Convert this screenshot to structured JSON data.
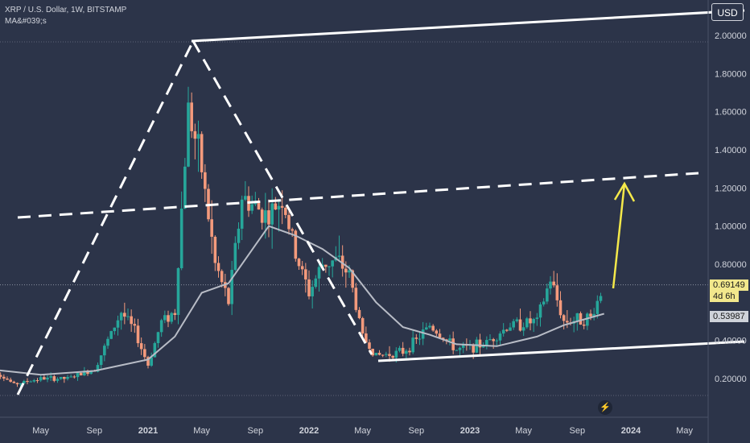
{
  "header": {
    "symbol_line": "XRP / U.S. Dollar, 1W, BITSTAMP",
    "indicator_line": "MA&#039;s",
    "currency_button": "USD"
  },
  "price_tags": {
    "last_price": "0.69149",
    "countdown": "4d 6h",
    "ma_value": "0.53987"
  },
  "theme": {
    "background": "#2c3449",
    "up_candle": "#26a69a",
    "down_candle": "#f49a7c",
    "ma_line": "#b8bcc6",
    "drawings": "#ffffff",
    "arrow": "#f5e94a"
  },
  "icons": {
    "bottom": "lightning-icon"
  },
  "chart_data": {
    "type": "candlestick",
    "title": "XRP / U.S. Dollar, 1W, BITSTAMP",
    "ylabel": "USD",
    "y_ticks": [
      "2.00000",
      "1.80000",
      "1.60000",
      "1.40000",
      "1.20000",
      "1.00000",
      "0.80000",
      "0.40000",
      "0.20000"
    ],
    "y_tick_values": [
      2.0,
      1.8,
      1.6,
      1.4,
      1.2,
      1.0,
      0.8,
      0.4,
      0.2
    ],
    "x_ticks": [
      "May",
      "Sep",
      "2021",
      "May",
      "Sep",
      "2022",
      "May",
      "Sep",
      "2023",
      "May",
      "Sep",
      "2024",
      "May"
    ],
    "x_tick_dates": [
      "2020-05",
      "2020-09",
      "2021-01",
      "2021-05",
      "2021-09",
      "2022-01",
      "2022-05",
      "2022-09",
      "2023-01",
      "2023-05",
      "2023-09",
      "2024-01",
      "2024-05"
    ],
    "last_price": 0.69149,
    "ma_last": 0.53987,
    "price_path": [
      [
        "2020-01",
        0.27
      ],
      [
        "2020-03",
        0.17
      ],
      [
        "2020-05",
        0.2
      ],
      [
        "2020-07",
        0.2
      ],
      [
        "2020-09",
        0.25
      ],
      [
        "2020-11",
        0.55
      ],
      [
        "2020-12",
        0.45
      ],
      [
        "2021-01",
        0.27
      ],
      [
        "2021-02",
        0.5
      ],
      [
        "2021-03",
        0.55
      ],
      [
        "2021-04",
        1.62
      ],
      [
        "2021-05",
        1.3
      ],
      [
        "2021-06",
        0.8
      ],
      [
        "2021-07",
        0.6
      ],
      [
        "2021-08",
        1.15
      ],
      [
        "2021-09",
        1.1
      ],
      [
        "2021-10",
        1.05
      ],
      [
        "2021-11",
        1.15
      ],
      [
        "2021-12",
        0.85
      ],
      [
        "2022-01",
        0.65
      ],
      [
        "2022-02",
        0.8
      ],
      [
        "2022-03",
        0.82
      ],
      [
        "2022-04",
        0.75
      ],
      [
        "2022-05",
        0.42
      ],
      [
        "2022-06",
        0.32
      ],
      [
        "2022-08",
        0.34
      ],
      [
        "2022-09",
        0.4
      ],
      [
        "2022-10",
        0.48
      ],
      [
        "2022-12",
        0.35
      ],
      [
        "2023-02",
        0.38
      ],
      [
        "2023-04",
        0.48
      ],
      [
        "2023-06",
        0.5
      ],
      [
        "2023-07",
        0.72
      ],
      [
        "2023-08",
        0.5
      ],
      [
        "2023-10",
        0.52
      ],
      [
        "2023-11",
        0.69
      ]
    ],
    "ma_path": [
      [
        "2020-01",
        0.25
      ],
      [
        "2020-05",
        0.22
      ],
      [
        "2020-09",
        0.24
      ],
      [
        "2021-01",
        0.3
      ],
      [
        "2021-03",
        0.42
      ],
      [
        "2021-05",
        0.65
      ],
      [
        "2021-07",
        0.7
      ],
      [
        "2021-09",
        0.9
      ],
      [
        "2021-10",
        1.0
      ],
      [
        "2021-12",
        0.95
      ],
      [
        "2022-02",
        0.88
      ],
      [
        "2022-04",
        0.78
      ],
      [
        "2022-06",
        0.6
      ],
      [
        "2022-08",
        0.47
      ],
      [
        "2022-10",
        0.43
      ],
      [
        "2022-12",
        0.38
      ],
      [
        "2023-03",
        0.37
      ],
      [
        "2023-06",
        0.42
      ],
      [
        "2023-08",
        0.48
      ],
      [
        "2023-11",
        0.54
      ]
    ]
  }
}
